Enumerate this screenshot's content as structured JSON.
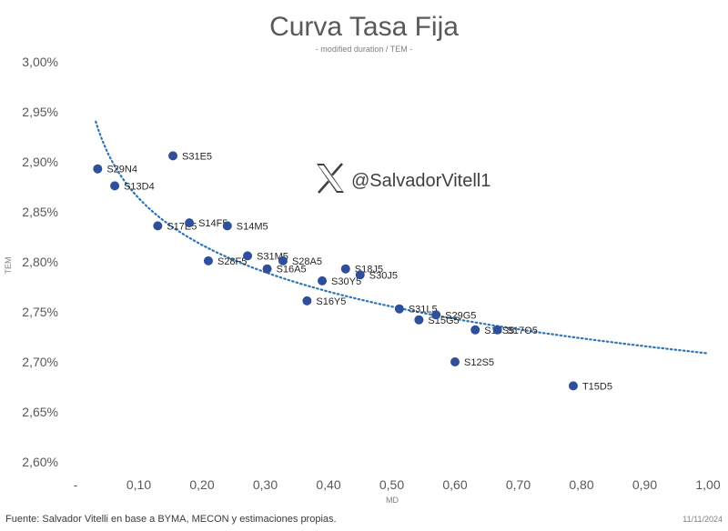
{
  "chart_data": {
    "type": "scatter",
    "title": "Curva Tasa Fija",
    "subtitle": "- modified duration / TEM -",
    "xlabel": "MD",
    "ylabel": "TEM",
    "xlim": [
      0,
      1.0
    ],
    "ylim": [
      0.026,
      0.03
    ],
    "x_ticks": [
      "-",
      "0,10",
      "0,20",
      "0,30",
      "0,40",
      "0,50",
      "0,60",
      "0,70",
      "0,80",
      "0,90",
      "1,00"
    ],
    "y_ticks": [
      "2,60%",
      "2,65%",
      "2,70%",
      "2,75%",
      "2,80%",
      "2,85%",
      "2,90%",
      "2,95%",
      "3,00%"
    ],
    "grid": false,
    "legend": "none",
    "marker_color": "#2f4f9a",
    "trendline_color": "#2e75b6",
    "trendline": "logarithmic dotted",
    "points": [
      {
        "label": "S29N4",
        "x": 0.035,
        "y": 0.02893
      },
      {
        "label": "S13D4",
        "x": 0.062,
        "y": 0.02876
      },
      {
        "label": "S31E5",
        "x": 0.154,
        "y": 0.02906
      },
      {
        "label": "S17E5",
        "x": 0.13,
        "y": 0.02836
      },
      {
        "label": "S14F5",
        "x": 0.18,
        "y": 0.02839
      },
      {
        "label": "S14M5",
        "x": 0.24,
        "y": 0.02836
      },
      {
        "label": "S28F5",
        "x": 0.21,
        "y": 0.02801
      },
      {
        "label": "S31M5",
        "x": 0.272,
        "y": 0.02806
      },
      {
        "label": "S28A5",
        "x": 0.328,
        "y": 0.02801
      },
      {
        "label": "S16A5",
        "x": 0.303,
        "y": 0.02793
      },
      {
        "label": "S16Y5",
        "x": 0.366,
        "y": 0.02761
      },
      {
        "label": "S30Y5",
        "x": 0.39,
        "y": 0.02781
      },
      {
        "label": "S18J5",
        "x": 0.427,
        "y": 0.02793
      },
      {
        "label": "S30J5",
        "x": 0.45,
        "y": 0.02787
      },
      {
        "label": "S31L5",
        "x": 0.512,
        "y": 0.02753
      },
      {
        "label": "S15G5",
        "x": 0.543,
        "y": 0.02742
      },
      {
        "label": "S29G5",
        "x": 0.57,
        "y": 0.02747
      },
      {
        "label": "S15S5",
        "x": 0.632,
        "y": 0.02732
      },
      {
        "label": "S17O5",
        "x": 0.667,
        "y": 0.02732
      },
      {
        "label": "S12S5",
        "x": 0.6,
        "y": 0.027
      },
      {
        "label": "T15D5",
        "x": 0.787,
        "y": 0.02676
      }
    ]
  },
  "watermark": {
    "handle": "@SalvadorVitell1",
    "icon": "x-logo-icon"
  },
  "footer": {
    "source": "Fuente: Salvador Vitelli en base a BYMA, MECON y estimaciones propias.",
    "date": "11/11/2024"
  }
}
